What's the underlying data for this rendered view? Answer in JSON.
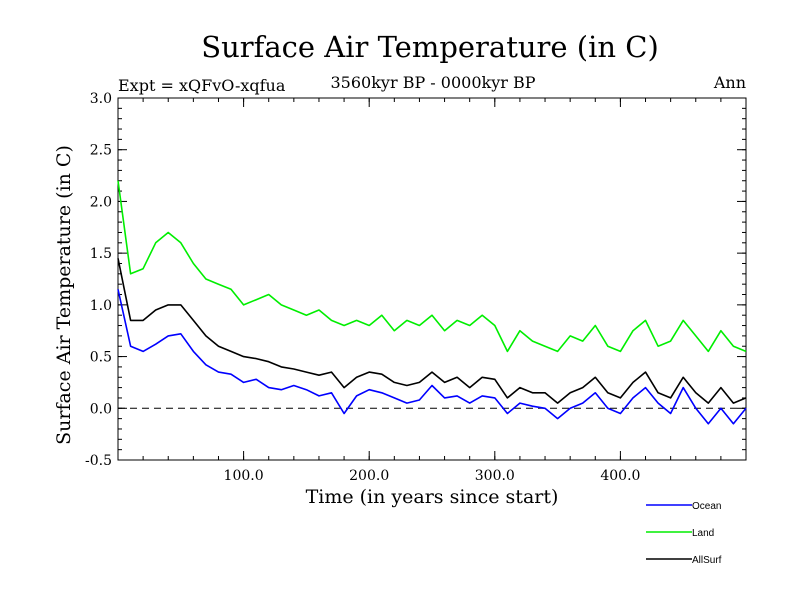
{
  "chart_data": {
    "type": "line",
    "title": "Surface Air Temperature (in C)",
    "subtitle": "3560kyr BP - 0000kyr BP",
    "experiment_label": "Expt = xQFvO-xqfua",
    "season_label": "Ann",
    "xlabel": "Time (in years since start)",
    "ylabel": "Surface Air Temperature (in C)",
    "xlim": [
      0,
      500
    ],
    "ylim": [
      -0.5,
      3.0
    ],
    "x_ticks": [
      100,
      200,
      300,
      400
    ],
    "x_tick_labels": [
      "100.0",
      "200.0",
      "300.0",
      "400.0"
    ],
    "y_ticks": [
      -0.5,
      0.0,
      0.5,
      1.0,
      1.5,
      2.0,
      2.5,
      3.0
    ],
    "y_tick_labels": [
      "-0.5",
      "0.0",
      "0.5",
      "1.0",
      "1.5",
      "2.0",
      "2.5",
      "3.0"
    ],
    "reference_line": 0.0,
    "legend_position": "bottom-right, below plot",
    "x": [
      0,
      10,
      20,
      30,
      40,
      50,
      60,
      70,
      80,
      90,
      100,
      110,
      120,
      130,
      140,
      150,
      160,
      170,
      180,
      190,
      200,
      210,
      220,
      230,
      240,
      250,
      260,
      270,
      280,
      290,
      300,
      310,
      320,
      330,
      340,
      350,
      360,
      370,
      380,
      390,
      400,
      410,
      420,
      430,
      440,
      450,
      460,
      470,
      480,
      490,
      500
    ],
    "series": [
      {
        "name": "Ocean",
        "color": "#0000ff",
        "values": [
          1.15,
          0.6,
          0.55,
          0.62,
          0.7,
          0.72,
          0.55,
          0.42,
          0.35,
          0.33,
          0.25,
          0.28,
          0.2,
          0.18,
          0.22,
          0.18,
          0.12,
          0.15,
          -0.05,
          0.12,
          0.18,
          0.15,
          0.1,
          0.05,
          0.08,
          0.22,
          0.1,
          0.12,
          0.05,
          0.12,
          0.1,
          -0.05,
          0.05,
          0.02,
          0.0,
          -0.1,
          0.0,
          0.05,
          0.15,
          0.0,
          -0.05,
          0.1,
          0.2,
          0.05,
          -0.05,
          0.2,
          0.0,
          -0.15,
          0.0,
          -0.15,
          0.0
        ]
      },
      {
        "name": "Land",
        "color": "#00ee00",
        "values": [
          2.2,
          1.3,
          1.35,
          1.6,
          1.7,
          1.6,
          1.4,
          1.25,
          1.2,
          1.15,
          1.0,
          1.05,
          1.1,
          1.0,
          0.95,
          0.9,
          0.95,
          0.85,
          0.8,
          0.85,
          0.8,
          0.9,
          0.75,
          0.85,
          0.8,
          0.9,
          0.75,
          0.85,
          0.8,
          0.9,
          0.8,
          0.55,
          0.75,
          0.65,
          0.6,
          0.55,
          0.7,
          0.65,
          0.8,
          0.6,
          0.55,
          0.75,
          0.85,
          0.6,
          0.65,
          0.85,
          0.7,
          0.55,
          0.75,
          0.6,
          0.55
        ]
      },
      {
        "name": "AllSurf",
        "color": "#000000",
        "values": [
          1.45,
          0.85,
          0.85,
          0.95,
          1.0,
          1.0,
          0.85,
          0.7,
          0.6,
          0.55,
          0.5,
          0.48,
          0.45,
          0.4,
          0.38,
          0.35,
          0.32,
          0.35,
          0.2,
          0.3,
          0.35,
          0.33,
          0.25,
          0.22,
          0.25,
          0.35,
          0.25,
          0.3,
          0.2,
          0.3,
          0.28,
          0.1,
          0.2,
          0.15,
          0.15,
          0.05,
          0.15,
          0.2,
          0.3,
          0.15,
          0.1,
          0.25,
          0.35,
          0.15,
          0.1,
          0.3,
          0.15,
          0.05,
          0.2,
          0.05,
          0.1
        ]
      }
    ]
  }
}
